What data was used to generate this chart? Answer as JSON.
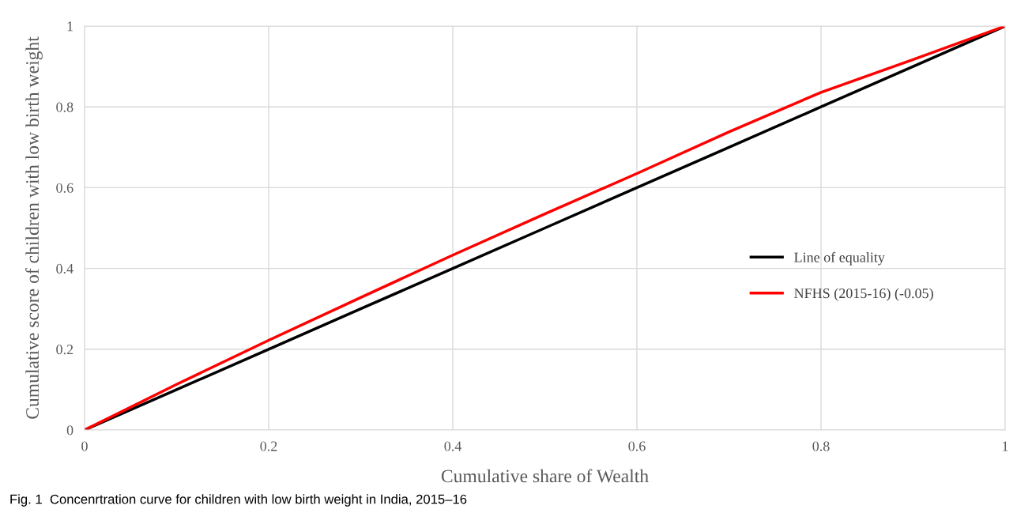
{
  "chart_data": {
    "type": "line",
    "xlabel": "Cumulative share of Wealth",
    "ylabel": "Cumulative score of children with low birth weight",
    "x": [
      0,
      0.1,
      0.2,
      0.3,
      0.4,
      0.5,
      0.6,
      0.7,
      0.8,
      0.9,
      1
    ],
    "series": [
      {
        "name": "Line of equality",
        "color": "#000000",
        "values": [
          0,
          0.1,
          0.2,
          0.3,
          0.4,
          0.5,
          0.6,
          0.7,
          0.8,
          0.9,
          1
        ]
      },
      {
        "name": "NFHS (2015-16) (-0.05)",
        "color": "#ff0000",
        "values": [
          0,
          0.113,
          0.222,
          0.328,
          0.433,
          0.535,
          0.635,
          0.738,
          0.836,
          0.917,
          1
        ]
      }
    ],
    "xlim": [
      0,
      1
    ],
    "ylim": [
      0,
      1
    ],
    "xticks": [
      0,
      0.2,
      0.4,
      0.6,
      0.8,
      1
    ],
    "yticks": [
      0,
      0.2,
      0.4,
      0.6,
      0.8,
      1
    ],
    "grid": true,
    "legend": "right",
    "marker": "none",
    "line_style": "solid",
    "annotations": [
      "Fig. 1  Concenrtration curve for children with low birth weight in India, 2015–16"
    ]
  }
}
